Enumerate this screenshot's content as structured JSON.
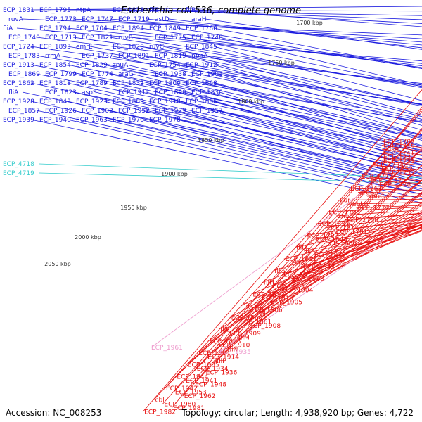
{
  "title": "Escherichia coli 536, complete genome",
  "accession": "Accession: NC_008253",
  "summary": "Topology: circular; Length: 4,938,920 bp; Genes: 4,722",
  "colors": {
    "forward": "#1a1adf",
    "reverse": "#e81010",
    "rna": "#33cccc",
    "pseudo": "#ee99cc",
    "backbone_dark": "#555555",
    "gc_tick": "#2a8a2a"
  },
  "scale_labels": [
    "1700 kbp",
    "1750 kbp",
    "1800 kbp",
    "1850 kbp",
    "1900 kbp",
    "1950 kbp",
    "2000 kbp",
    "2050 kbp"
  ],
  "forward_labels": [
    "ECP_1831",
    "ECP_1795",
    "ntpA",
    "ECP_1828",
    "fliE",
    "fliB",
    "ruvA",
    "ECP_1773",
    "ECP_1747",
    "ECP_1719",
    "astD",
    "araH",
    "fliA",
    "ECP_1794",
    "ECP_1704",
    "ECP_1894",
    "ECP_1849",
    "ECP_1766",
    "ECP_1740",
    "ECP_1713",
    "ECP_1821",
    "ruvB",
    "ECP_1775",
    "ECP_1748",
    "ECP_1724",
    "ECP_1893",
    "emrE",
    "ECP_1820",
    "ruvC",
    "ECP_1845",
    "ECP_1783",
    "rrmA",
    "ECP_1737",
    "ECP_1891",
    "ECP_1819",
    "pphA",
    "ECP_1913",
    "ECP_1854",
    "ECP_1829",
    "znuA",
    "ECP_1754",
    "ECP_1912",
    "ECP_1869",
    "ECP_1799",
    "ECP_1774",
    "araG",
    "ECP_1938",
    "ECP_1901",
    "ECP_1862",
    "ECP_1818",
    "ECP_1789",
    "ECP_1832",
    "ECP_1800",
    "ECP_1868",
    "fliA",
    "ECP_1823",
    "aspS",
    "ECP_1911",
    "ECP_1890",
    "ECP_1830",
    "ECP_1928",
    "ECP_1843",
    "ECP_1923",
    "ECP_1889",
    "ECP_1918",
    "ECP_1886",
    "ECP_1857",
    "ECP_1926",
    "ECP_1902",
    "ECP_1952",
    "ECP_1929",
    "ECP_1957",
    "ECP_1939",
    "ECP_1940",
    "ECP_1963",
    "ECP_1970",
    "ECP_1978"
  ],
  "rna_labels": [
    "ECP_4718",
    "ECP_4719"
  ],
  "reverse_labels": [
    "ECP_1707",
    "ECP_1716",
    "ansA",
    "ECP_1741",
    "ECP_1727",
    "ECP_1731",
    "ECP_1734",
    "ECP_1752",
    "ECP_1753",
    "ECP_1777",
    "ECP_1757",
    "ECP_1778",
    "ECP_1761",
    "argS",
    "znuC",
    "purT",
    "yebU",
    "ECP_1772",
    "ECP_1798",
    "znuB",
    "ECP_1780",
    "ECP_1837",
    "ECP_1814",
    "ECP_1781",
    "ECP_1797",
    "ECP_1844",
    "ECP_1806",
    "fliD",
    "fliF",
    "ECP_1846",
    "ECP_1811",
    "fliS",
    "ECP_1847",
    "fliG",
    "ECP_1812",
    "ECP_1848",
    "fliH",
    "ECP_1813",
    "ECP_1904",
    "ECP_1850",
    "ECP_1815",
    "ECP_1905",
    "fliI",
    "ECP_1906",
    "fliJ",
    "ECP_1860",
    "ECP_1861",
    "ECP_1908",
    "fliL",
    "ECP_1909",
    "fliM",
    "ECP_1863",
    "ECP_1910",
    "fliN",
    "ECP_1864",
    "ECP_1914",
    "fliP",
    "ECP_1865",
    "ECP_1934",
    "ECP_1936",
    "ECP_1944",
    "ECP_1941",
    "ECP_1948",
    "ECP_1942",
    "ECP_1953",
    "ECP_1962",
    "cbl",
    "ECP_1980",
    "ECP_1981",
    "ECP_1982"
  ],
  "pseudo_labels": [
    "ECP_1961",
    "ECP_1935"
  ]
}
